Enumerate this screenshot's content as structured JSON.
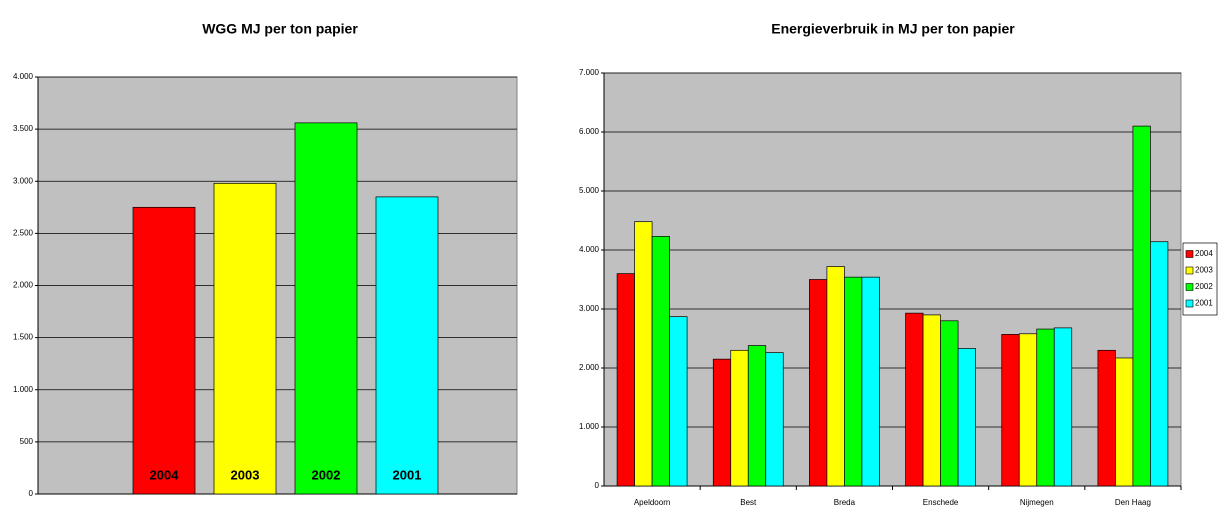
{
  "chart_data": [
    {
      "type": "bar",
      "title": "WGG MJ per ton papier",
      "categories": [
        "2004",
        "2003",
        "2002",
        "2001"
      ],
      "values": [
        2750,
        2980,
        3560,
        2850
      ],
      "colors": [
        "#ff0000",
        "#ffff00",
        "#00ff00",
        "#00ffff"
      ],
      "ylim": [
        0,
        4000
      ],
      "yticks": [
        0,
        500,
        {
          "value": 1000,
          "label": "1.000"
        },
        {
          "value": 1500,
          "label": "1.500"
        },
        {
          "value": 2000,
          "label": "2.000"
        },
        {
          "value": 2500,
          "label": "2.500"
        },
        {
          "value": 3000,
          "label": "3.000"
        },
        {
          "value": 3500,
          "label": "3.500"
        },
        {
          "value": 4000,
          "label": "4.000"
        }
      ],
      "grid": true
    },
    {
      "type": "grouped-bar",
      "title": "Energieverbruik in MJ per ton papier",
      "categories": [
        "Apeldoorn",
        "Best",
        "Breda",
        "Enschede",
        "Nijmegen",
        "Den Haag"
      ],
      "series": [
        {
          "name": "2004",
          "color": "#ff0000",
          "values": [
            3600,
            2150,
            3500,
            2930,
            2570,
            2300
          ]
        },
        {
          "name": "2003",
          "color": "#ffff00",
          "values": [
            4480,
            2300,
            3720,
            2900,
            2580,
            2170
          ]
        },
        {
          "name": "2002",
          "color": "#00ff00",
          "values": [
            4230,
            2380,
            3540,
            2800,
            2660,
            6100
          ]
        },
        {
          "name": "2001",
          "color": "#00ffff",
          "values": [
            2870,
            2260,
            3540,
            2330,
            2680,
            4140
          ]
        }
      ],
      "ylim": [
        0,
        7000
      ],
      "yticks": [
        0,
        {
          "value": 1000,
          "label": "1.000"
        },
        {
          "value": 2000,
          "label": "2.000"
        },
        {
          "value": 3000,
          "label": "3.000"
        },
        {
          "value": 4000,
          "label": "4.000"
        },
        {
          "value": 5000,
          "label": "5.000"
        },
        {
          "value": 6000,
          "label": "6.000"
        },
        {
          "value": 7000,
          "label": "7.000"
        }
      ],
      "grid": true,
      "legend": "right"
    }
  ]
}
